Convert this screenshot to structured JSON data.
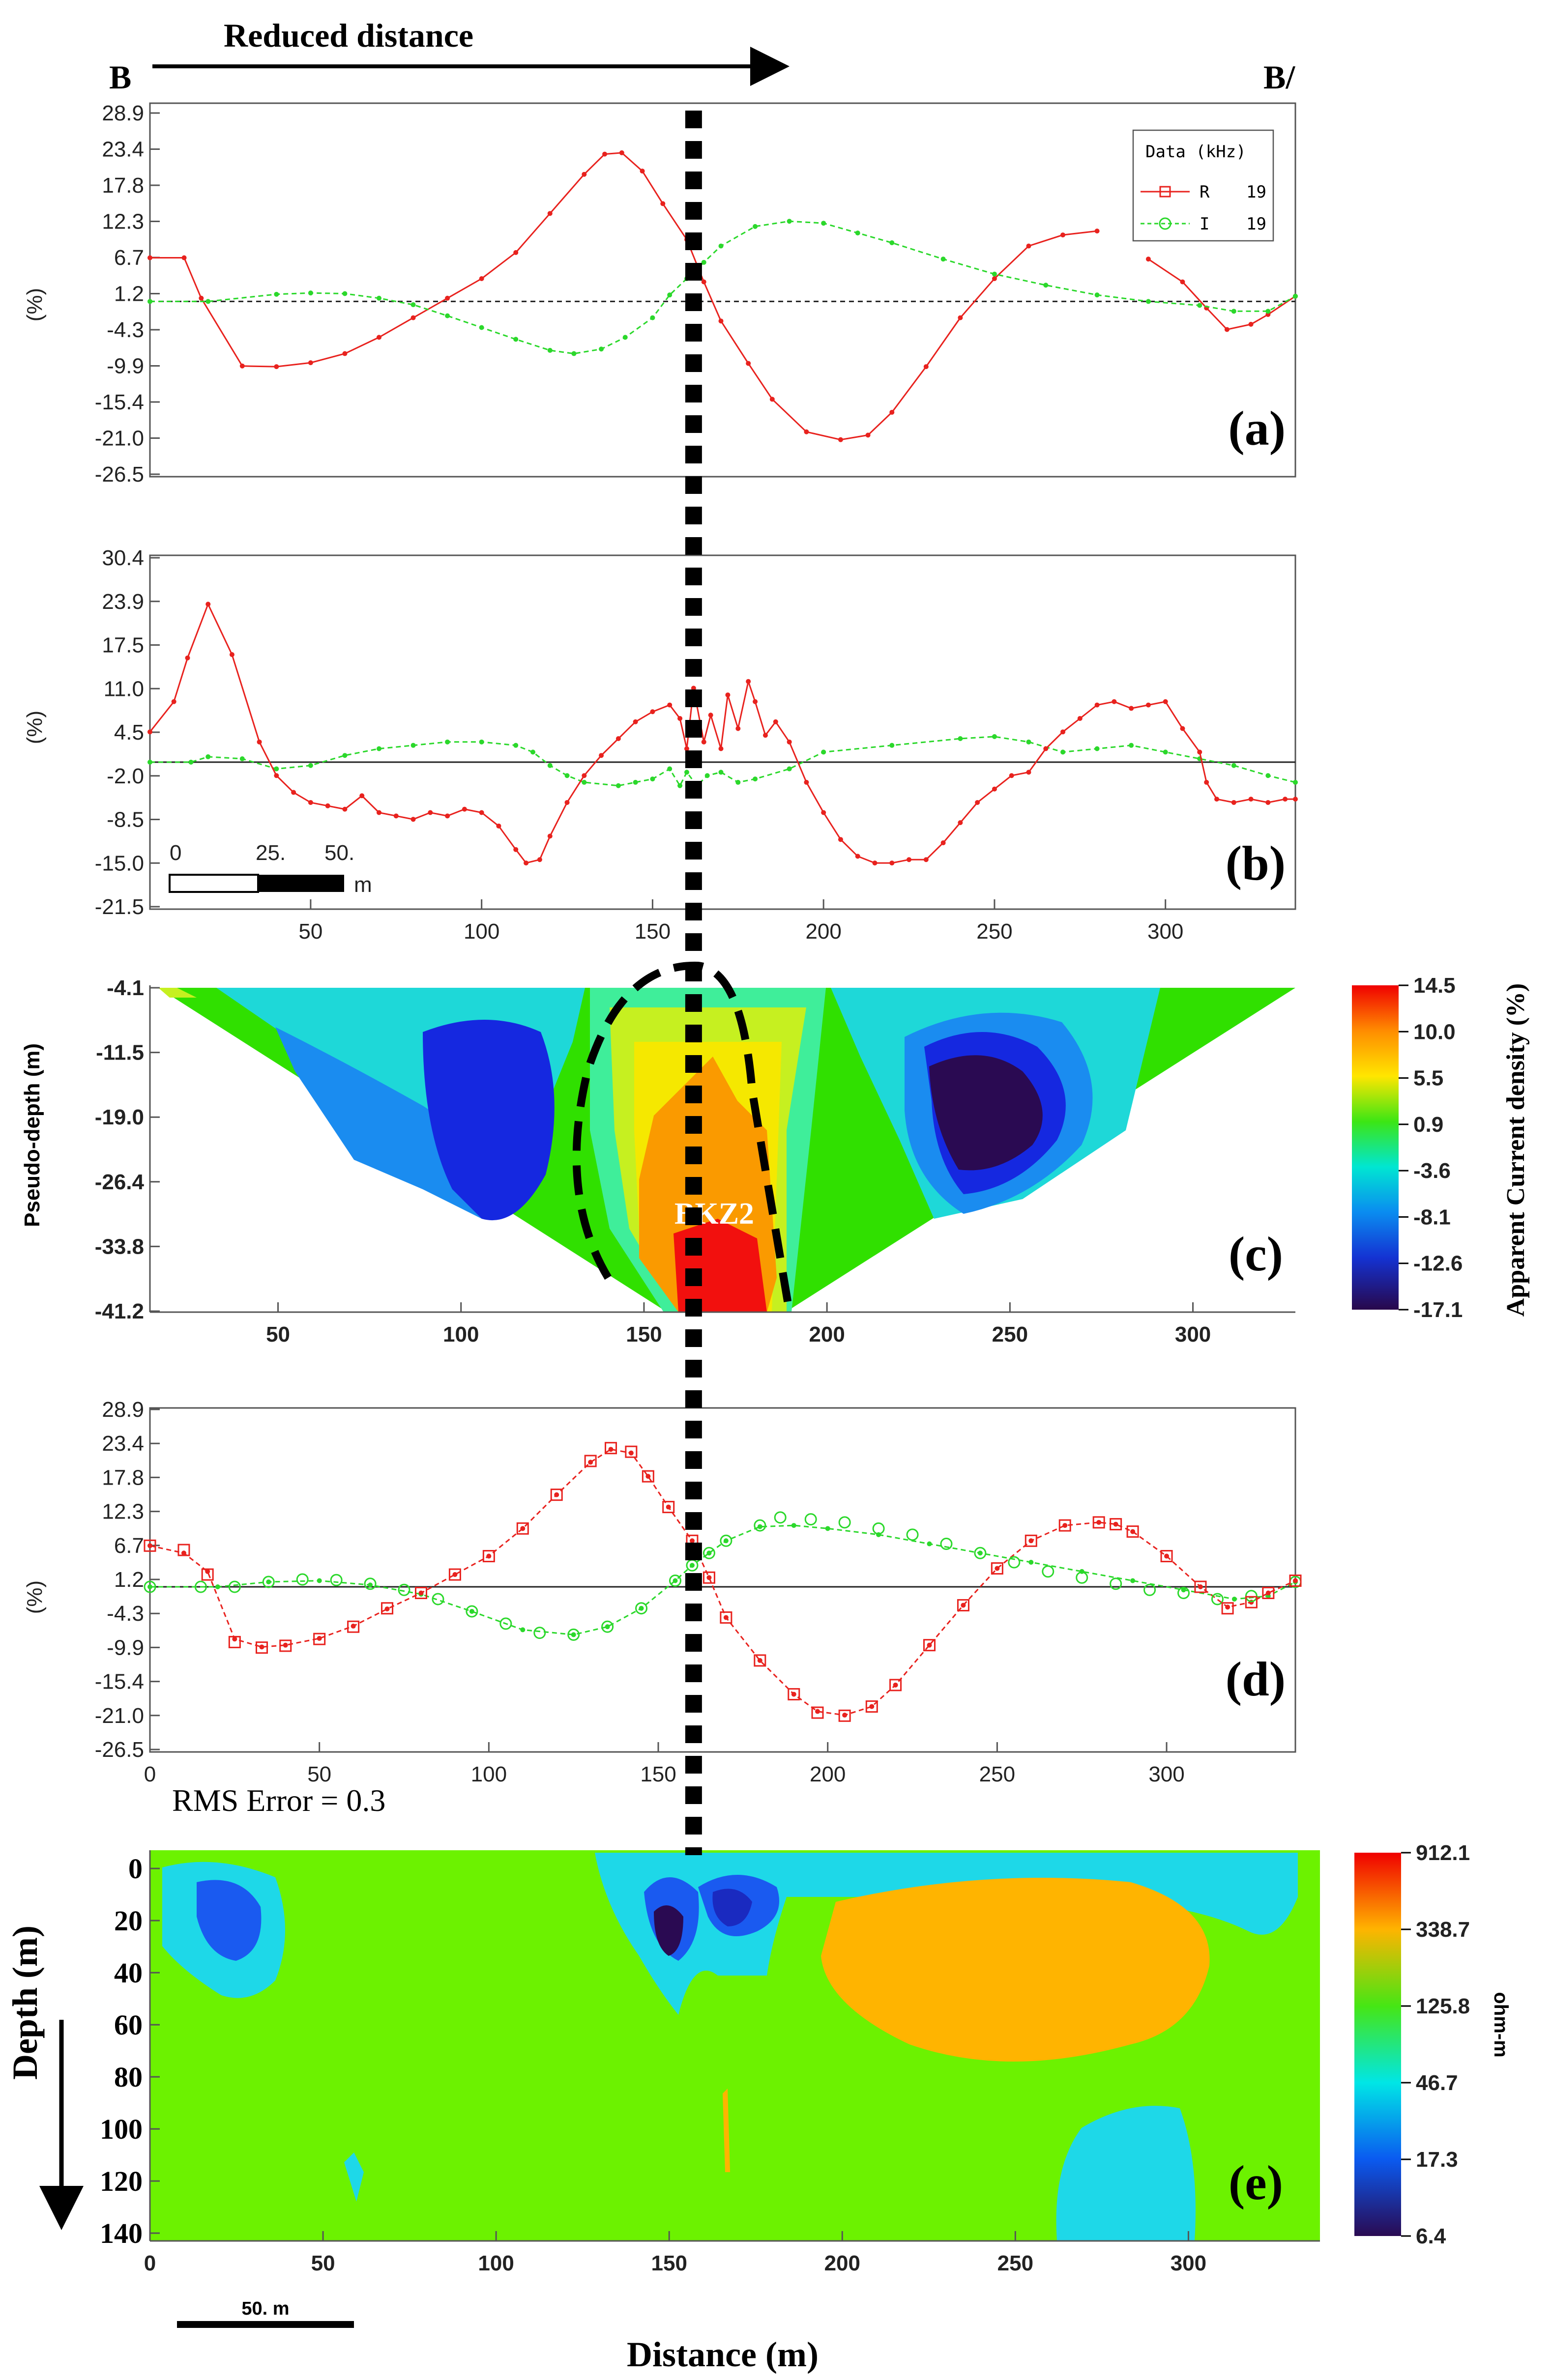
{
  "header": {
    "left_label": "B",
    "right_label": "B/",
    "arrow_label": "Reduced distance"
  },
  "colors": {
    "real": "#e8221e",
    "imag": "#2bd82b",
    "marker": "#000000"
  },
  "marker_line_x": 162,
  "chart_data": [
    {
      "id": "a",
      "type": "line",
      "panel_label": "(a)",
      "ylabel": "(%)",
      "ylim": [
        -26.5,
        28.9
      ],
      "yticks": [
        "28.9",
        "23.4",
        "17.8",
        "12.3",
        "6.7",
        "1.2",
        "-4.3",
        "-9.9",
        "-15.4",
        "-21.0",
        "-26.5"
      ],
      "xlim": [
        3,
        338
      ],
      "baseline": 0,
      "legend": {
        "title": "Data (kHz)",
        "entries": [
          {
            "label": "R",
            "freq": "19"
          },
          {
            "label": "I",
            "freq": "19"
          }
        ]
      },
      "series": [
        {
          "name": "R 19",
          "segments": [
            {
              "x": [
                3,
                13,
                18,
                30,
                40,
                50,
                60,
                70,
                80,
                90,
                100,
                110,
                120,
                130,
                136,
                141,
                147,
                153,
                160,
                165,
                170,
                178,
                185,
                195,
                205,
                213,
                220,
                230,
                240,
                250,
                260,
                270,
                280
              ],
              "y": [
                6.7,
                6.7,
                0.5,
                -9.9,
                -10.0,
                -9.4,
                -8.0,
                -5.5,
                -2.5,
                0.5,
                3.5,
                7.5,
                13.5,
                19.5,
                22.6,
                22.8,
                20.0,
                15.0,
                9.5,
                3.0,
                -3.0,
                -9.5,
                -15.0,
                -20.0,
                -21.2,
                -20.5,
                -17.0,
                -10.0,
                -2.5,
                3.5,
                8.5,
                10.2,
                10.8
              ]
            },
            {
              "x": [
                295,
                305,
                312,
                318,
                325,
                330,
                338
              ],
              "y": [
                6.5,
                3.0,
                -1.0,
                -4.3,
                -3.5,
                -2.0,
                0.8
              ]
            }
          ]
        },
        {
          "name": "I 19",
          "segments": [
            {
              "x": [
                3,
                20,
                40,
                50,
                60,
                70,
                80,
                90,
                100,
                110,
                120,
                127,
                135,
                142,
                150,
                155,
                160,
                165,
                170,
                180,
                190,
                200,
                210,
                220,
                235,
                250,
                265,
                280,
                295,
                310,
                320,
                330,
                338
              ],
              "y": [
                0,
                0,
                1.1,
                1.3,
                1.2,
                0.5,
                -0.5,
                -2.2,
                -4.0,
                -5.8,
                -7.5,
                -8.0,
                -7.3,
                -5.5,
                -2.5,
                1.0,
                3.5,
                6.0,
                8.5,
                11.5,
                12.3,
                12.0,
                10.5,
                9.0,
                6.5,
                4.2,
                2.5,
                1.0,
                0,
                -0.6,
                -1.5,
                -1.5,
                0.8
              ]
            }
          ]
        }
      ]
    },
    {
      "id": "b",
      "type": "line",
      "panel_label": "(b)",
      "ylabel": "(%)",
      "ylim": [
        -21.5,
        30.4
      ],
      "yticks": [
        "30.4",
        "23.9",
        "17.5",
        "11.0",
        "4.5",
        "-2.0",
        "-8.5",
        "-15.0",
        "-21.5"
      ],
      "xlim": [
        3,
        338
      ],
      "xticks": [
        "50",
        "100",
        "150",
        "200",
        "250",
        "300"
      ],
      "xtick_values": [
        50,
        100,
        150,
        200,
        250,
        300
      ],
      "baseline": 0,
      "scalebar": {
        "labels": [
          "0",
          "25.",
          "50."
        ],
        "unit": "m"
      },
      "series": [
        {
          "name": "R",
          "x": [
            3,
            10,
            14,
            20,
            27,
            35,
            40,
            45,
            50,
            55,
            60,
            65,
            70,
            75,
            80,
            85,
            90,
            95,
            100,
            105,
            110,
            113,
            117,
            120,
            125,
            130,
            135,
            140,
            145,
            150,
            155,
            158,
            160,
            162,
            165,
            167,
            170,
            172,
            175,
            178,
            180,
            183,
            186,
            190,
            195,
            200,
            205,
            210,
            215,
            220,
            225,
            230,
            235,
            240,
            245,
            250,
            255,
            260,
            265,
            270,
            275,
            280,
            285,
            290,
            295,
            300,
            305,
            310,
            312,
            315,
            320,
            325,
            330,
            335,
            338
          ],
          "y": [
            4.5,
            9.0,
            15.5,
            23.5,
            16.0,
            3.0,
            -2.0,
            -4.5,
            -6.0,
            -6.5,
            -7.0,
            -5.0,
            -7.5,
            -8.0,
            -8.5,
            -7.5,
            -8.0,
            -7.0,
            -7.5,
            -9.5,
            -13.0,
            -15.0,
            -14.5,
            -11.0,
            -6.0,
            -2.0,
            1.0,
            3.5,
            6.0,
            7.5,
            8.5,
            6.5,
            2.0,
            11.0,
            3.0,
            7.0,
            2.0,
            10.0,
            5.0,
            12.0,
            9.0,
            4.0,
            6.0,
            3.0,
            -3.0,
            -7.5,
            -11.5,
            -14.0,
            -15.0,
            -15.0,
            -14.5,
            -14.5,
            -12.0,
            -9.0,
            -6.0,
            -4.0,
            -2.0,
            -1.5,
            2.0,
            4.5,
            6.5,
            8.5,
            9.0,
            8.0,
            8.5,
            9.0,
            5.0,
            1.5,
            -3.0,
            -5.5,
            -6.0,
            -5.5,
            -6.0,
            -5.5,
            -5.5
          ]
        },
        {
          "name": "I",
          "x": [
            3,
            15,
            20,
            30,
            40,
            50,
            60,
            70,
            80,
            90,
            100,
            110,
            115,
            120,
            125,
            130,
            140,
            145,
            150,
            155,
            158,
            160,
            163,
            166,
            170,
            175,
            180,
            190,
            200,
            220,
            240,
            250,
            260,
            270,
            280,
            290,
            300,
            310,
            320,
            330,
            338
          ],
          "y": [
            0,
            0,
            0.8,
            0.5,
            -1.0,
            -0.5,
            1.0,
            2.0,
            2.5,
            3.0,
            3.0,
            2.5,
            1.5,
            -0.5,
            -2.0,
            -3.0,
            -3.5,
            -3.0,
            -2.5,
            -1.0,
            -3.5,
            -1.5,
            -3.5,
            -2.0,
            -1.5,
            -3.0,
            -2.5,
            -1.0,
            1.5,
            2.5,
            3.5,
            3.8,
            3.0,
            1.5,
            2.0,
            2.5,
            1.5,
            0.5,
            -0.5,
            -2.0,
            -3.0
          ]
        }
      ]
    },
    {
      "id": "c",
      "type": "heatmap",
      "panel_label": "(c)",
      "ylabel": "Pseudo-depth (m)",
      "yticks": [
        "-4.1",
        "-11.5",
        "-19.0",
        "-26.4",
        "-33.8",
        "-41.2"
      ],
      "xticks": [
        "50",
        "100",
        "150",
        "200",
        "250",
        "300"
      ],
      "xtick_values": [
        50,
        100,
        150,
        200,
        250,
        300
      ],
      "xlim": [
        15,
        328
      ],
      "annotation": "BKZ2",
      "colorbar": {
        "title": "Apparent Current density (%)",
        "ticks": [
          "14.5",
          "10.0",
          "5.5",
          "0.9",
          "-3.6",
          "-8.1",
          "-12.6",
          "-17.1"
        ]
      }
    },
    {
      "id": "d",
      "type": "line",
      "panel_label": "(d)",
      "ylabel": "(%)",
      "ylim": [
        -26.5,
        28.9
      ],
      "yticks": [
        "28.9",
        "23.4",
        "17.8",
        "12.3",
        "6.7",
        "1.2",
        "-4.3",
        "-9.9",
        "-15.4",
        "-21.0",
        "-26.5"
      ],
      "xlim": [
        0,
        338
      ],
      "xticks": [
        "0",
        "50",
        "100",
        "150",
        "200",
        "250",
        "300"
      ],
      "xtick_values": [
        0,
        50,
        100,
        150,
        200,
        250,
        300
      ],
      "baseline": 0,
      "annotation": "RMS Error = 0.3",
      "series": [
        {
          "name": "R observed",
          "x": [
            0,
            10,
            17,
            25,
            33,
            40,
            50,
            60,
            70,
            80,
            90,
            100,
            110,
            120,
            130,
            136,
            142,
            147,
            153,
            160,
            165,
            170,
            180,
            190,
            197,
            205,
            213,
            220,
            230,
            240,
            250,
            260,
            270,
            280,
            285,
            290,
            300,
            310,
            318,
            325,
            330,
            338
          ],
          "y": [
            6.7,
            6.0,
            2.0,
            -9.0,
            -9.9,
            -9.6,
            -8.5,
            -6.5,
            -3.5,
            -1.0,
            2.0,
            5.0,
            9.5,
            15.0,
            20.5,
            22.6,
            22.0,
            18.0,
            13.0,
            7.5,
            1.5,
            -5.0,
            -12.0,
            -17.5,
            -20.5,
            -21.0,
            -19.5,
            -16.0,
            -9.5,
            -3.0,
            3.0,
            7.5,
            10.0,
            10.5,
            10.2,
            9.0,
            5.0,
            0,
            -3.5,
            -2.5,
            -1.0,
            1.0
          ]
        },
        {
          "name": "I observed",
          "x": [
            0,
            15,
            25,
            35,
            45,
            55,
            65,
            75,
            85,
            95,
            105,
            115,
            125,
            135,
            145,
            155,
            160,
            165,
            170,
            180,
            186,
            195,
            205,
            215,
            225,
            235,
            245,
            255,
            265,
            275,
            285,
            295,
            305,
            315,
            325,
            338
          ],
          "y": [
            0,
            0,
            0,
            0.8,
            1.2,
            1.1,
            0.5,
            -0.5,
            -2.0,
            -4.0,
            -6.0,
            -7.5,
            -7.8,
            -6.5,
            -3.5,
            1.0,
            3.5,
            5.5,
            7.5,
            10.0,
            11.3,
            11.0,
            10.5,
            9.5,
            8.5,
            7.0,
            5.5,
            4.0,
            2.5,
            1.5,
            0.5,
            -0.5,
            -1.0,
            -2.0,
            -1.5,
            0.8
          ]
        },
        {
          "name": "R calculated",
          "x": [
            0,
            10,
            17,
            25,
            33,
            40,
            50,
            60,
            70,
            80,
            90,
            100,
            110,
            120,
            130,
            136,
            142,
            147,
            153,
            160,
            165,
            170,
            180,
            190,
            197,
            205,
            213,
            220,
            230,
            240,
            250,
            260,
            270,
            280,
            285,
            290,
            300,
            310,
            318,
            325,
            330,
            338
          ],
          "y": [
            6.7,
            5.5,
            2.5,
            -8.5,
            -9.8,
            -9.5,
            -8.4,
            -6.4,
            -3.6,
            -1.0,
            2.0,
            5.0,
            9.5,
            15.0,
            20.3,
            22.4,
            21.8,
            18.0,
            13.0,
            7.5,
            1.5,
            -5.0,
            -12.0,
            -17.5,
            -20.3,
            -20.9,
            -19.5,
            -16.0,
            -9.5,
            -3.0,
            3.0,
            7.5,
            10.0,
            10.5,
            10.2,
            9.0,
            5.0,
            0,
            -3.3,
            -2.5,
            -1.0,
            1.0
          ]
        },
        {
          "name": "I calculated",
          "x": [
            0,
            20,
            35,
            50,
            65,
            80,
            95,
            110,
            125,
            135,
            145,
            155,
            160,
            165,
            170,
            180,
            190,
            200,
            215,
            230,
            245,
            260,
            275,
            290,
            305,
            320,
            330,
            338
          ],
          "y": [
            0,
            0,
            0.8,
            1.0,
            0.3,
            -1.2,
            -4.0,
            -7.0,
            -7.8,
            -6.5,
            -3.5,
            1.0,
            3.5,
            5.5,
            7.5,
            9.8,
            10.0,
            9.5,
            8.5,
            7.0,
            5.5,
            4.0,
            2.5,
            1.0,
            -0.5,
            -2.0,
            -1.5,
            0.8
          ]
        }
      ]
    },
    {
      "id": "e",
      "type": "heatmap",
      "panel_label": "(e)",
      "ylabel": "Depth (m)",
      "xlabel": "Distance (m)",
      "yticks": [
        "0",
        "20",
        "40",
        "60",
        "80",
        "100",
        "120",
        "140"
      ],
      "ytick_values": [
        0,
        20,
        40,
        60,
        80,
        100,
        120,
        140
      ],
      "xticks": [
        "0",
        "50",
        "100",
        "150",
        "200",
        "250",
        "300"
      ],
      "xtick_values": [
        0,
        50,
        100,
        150,
        200,
        250,
        300
      ],
      "xlim": [
        0,
        338
      ],
      "ylim": [
        -7,
        143
      ],
      "scalebar_label": "50. m",
      "colorbar": {
        "title": "ohm-m",
        "ticks": [
          "912.1",
          "338.7",
          "125.8",
          "46.7",
          "17.3",
          "6.4"
        ]
      }
    }
  ]
}
